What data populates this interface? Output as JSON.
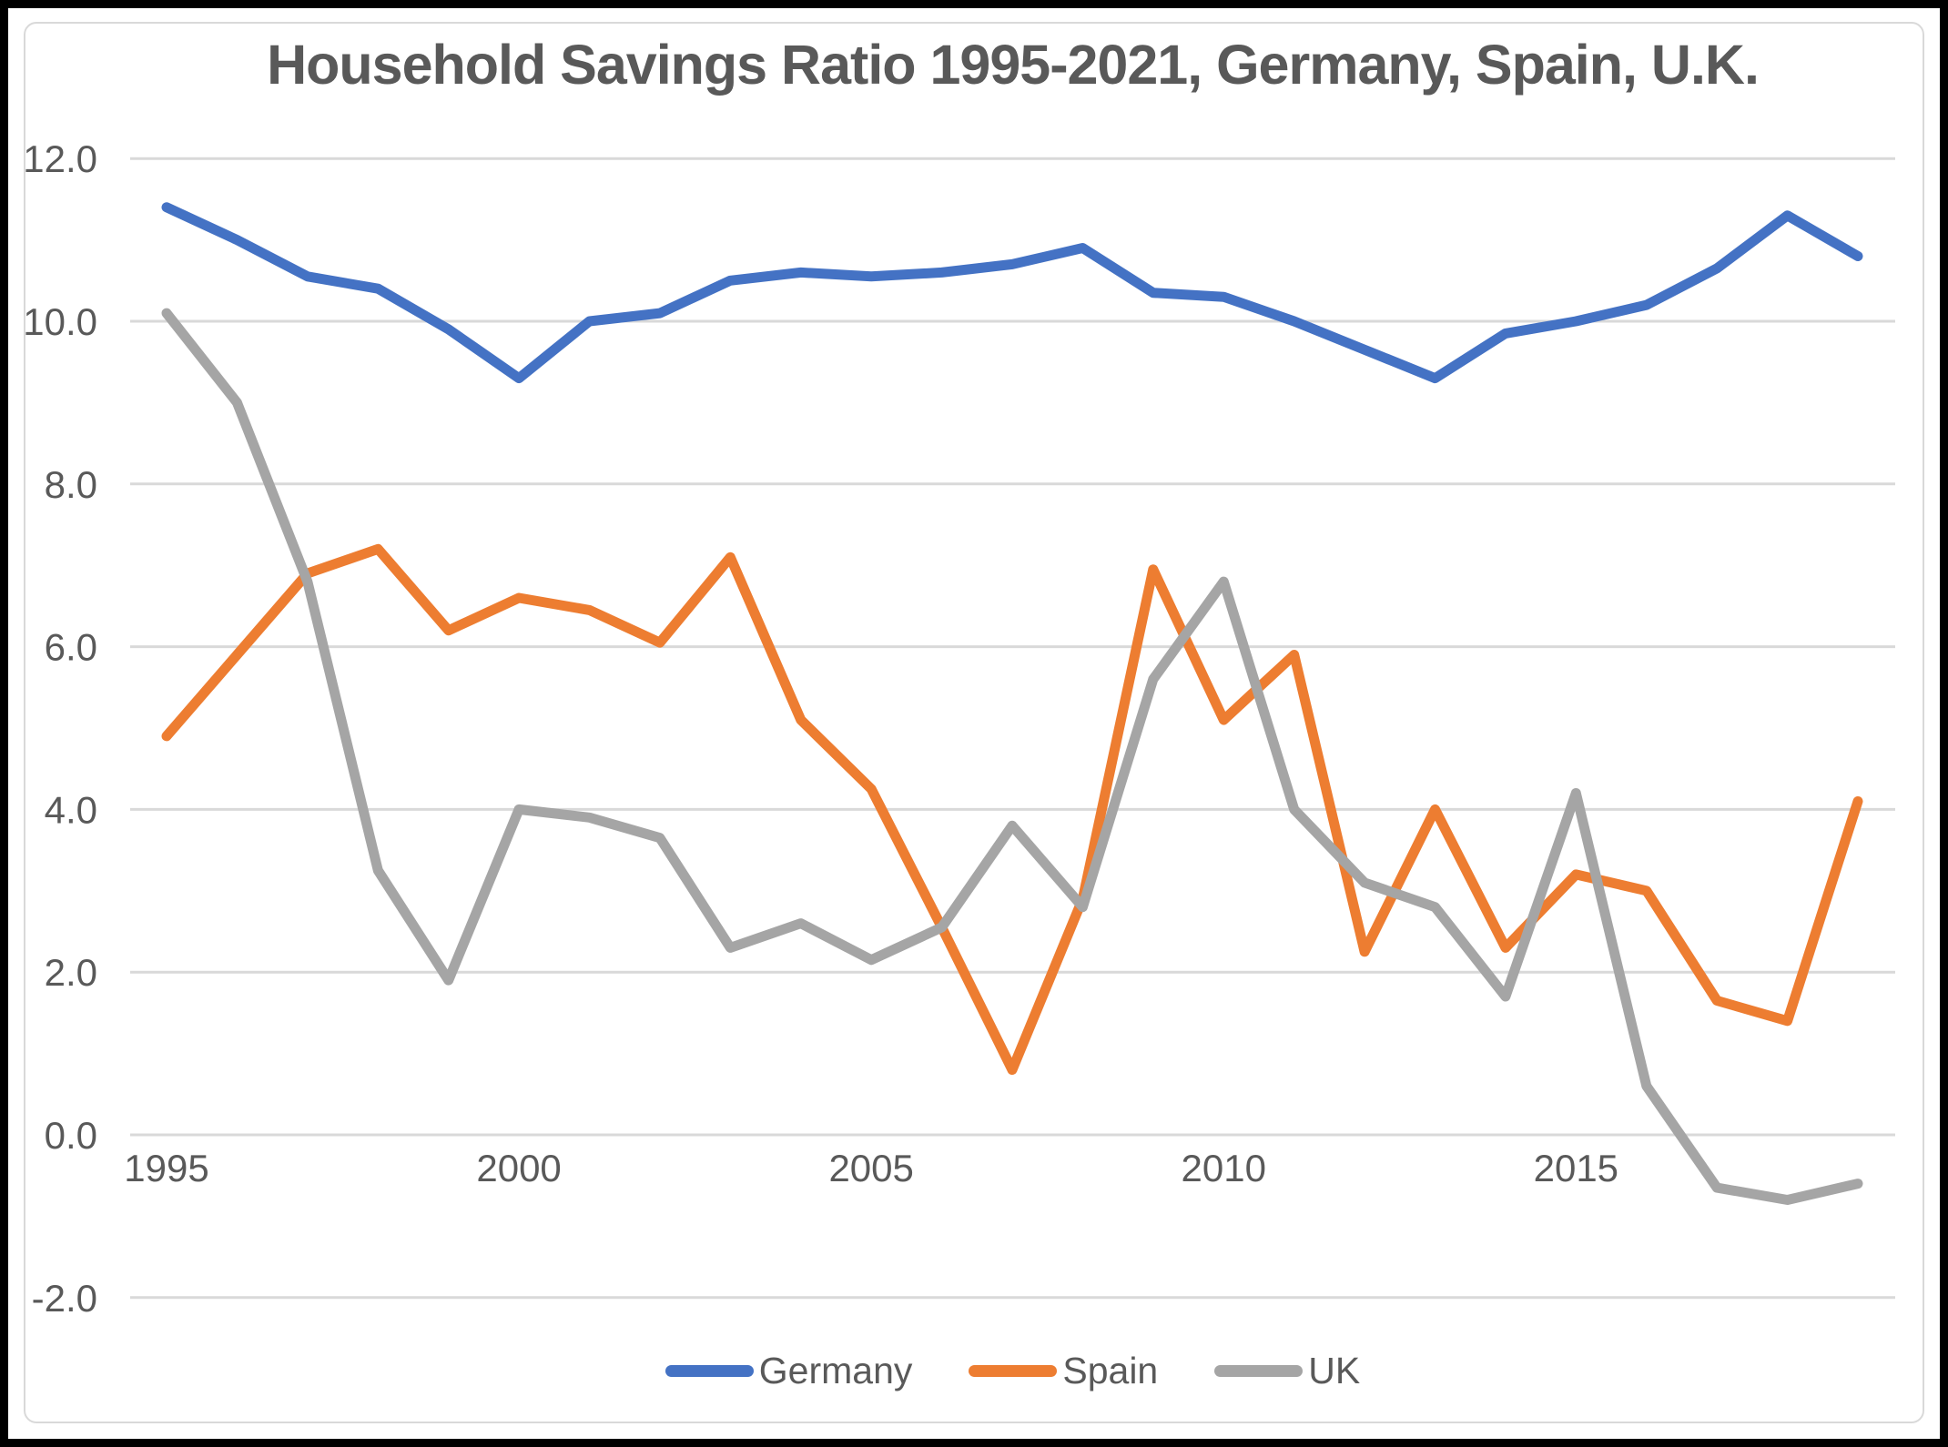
{
  "title": "Household Savings Ratio 1995-2021, Germany, Spain, U.K.",
  "colors": {
    "germany": "#4472C4",
    "spain": "#ED7D31",
    "uk": "#A5A5A5",
    "text": "#595959",
    "gridline": "#D9D9D9",
    "chart_border": "#D9D9D9",
    "frame": "#000000",
    "background": "#FFFFFF"
  },
  "legend": [
    {
      "label": "Germany",
      "color_key": "germany"
    },
    {
      "label": "Spain",
      "color_key": "spain"
    },
    {
      "label": "UK",
      "color_key": "uk"
    }
  ],
  "chart_data": {
    "type": "line",
    "title": "Household Savings Ratio 1995-2021, Germany, Spain, U.K.",
    "x": [
      1995,
      1996,
      1997,
      1998,
      1999,
      2000,
      2001,
      2002,
      2003,
      2004,
      2005,
      2006,
      2007,
      2008,
      2009,
      2010,
      2011,
      2012,
      2013,
      2014,
      2015,
      2016,
      2017,
      2018,
      2019
    ],
    "x_ticks": [
      {
        "year": 1995,
        "label": "1995"
      },
      {
        "year": 2000,
        "label": "2000"
      },
      {
        "year": 2005,
        "label": "2005"
      },
      {
        "year": 2010,
        "label": "2010"
      },
      {
        "year": 2015,
        "label": "2015"
      }
    ],
    "y_ticks": [
      {
        "value": 12,
        "label": "12.0"
      },
      {
        "value": 10,
        "label": "10.0"
      },
      {
        "value": 8,
        "label": "8.0"
      },
      {
        "value": 6,
        "label": "6.0"
      },
      {
        "value": 4,
        "label": "4.0"
      },
      {
        "value": 2,
        "label": "2.0"
      },
      {
        "value": 0,
        "label": "0.0"
      },
      {
        "value": -2,
        "label": "-2.0"
      }
    ],
    "ylim": [
      -2,
      12
    ],
    "grid": true,
    "legend_position": "bottom",
    "series": [
      {
        "name": "Germany",
        "color": "#4472C4",
        "values": [
          11.4,
          11.0,
          10.55,
          10.4,
          9.9,
          9.3,
          10.0,
          10.1,
          10.5,
          10.6,
          10.55,
          10.6,
          10.7,
          10.9,
          10.35,
          10.3,
          10.0,
          9.65,
          9.3,
          9.85,
          10.0,
          10.2,
          10.65,
          11.3,
          10.8
        ]
      },
      {
        "name": "Spain",
        "color": "#ED7D31",
        "values": [
          4.9,
          5.9,
          6.9,
          7.2,
          6.2,
          6.6,
          6.45,
          6.05,
          7.1,
          5.1,
          4.25,
          2.55,
          0.8,
          2.9,
          6.95,
          5.1,
          5.9,
          2.25,
          4.0,
          2.3,
          3.2,
          3.0,
          1.65,
          1.4,
          4.1
        ]
      },
      {
        "name": "UK",
        "color": "#A5A5A5",
        "values": [
          10.1,
          9.0,
          6.8,
          3.25,
          1.9,
          4.0,
          3.9,
          3.65,
          2.3,
          2.6,
          2.15,
          2.55,
          3.8,
          2.8,
          5.6,
          6.8,
          4.0,
          3.1,
          2.8,
          1.7,
          4.2,
          0.6,
          -0.65,
          -0.8,
          -0.6
        ]
      }
    ]
  }
}
